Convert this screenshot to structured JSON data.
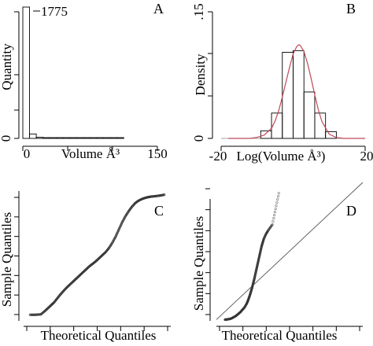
{
  "chart_data": [
    {
      "panel": "A",
      "type": "bar",
      "xlabel": "Volume Å³",
      "ylabel": "Quantity",
      "x_ticks": [
        "0",
        "150"
      ],
      "y_ticks": [
        "0"
      ],
      "annotation": "1775",
      "bins": [
        {
          "x0": 0,
          "x1": 7.5,
          "value": 1775
        },
        {
          "x0": 7.5,
          "x1": 15,
          "value": 60
        },
        {
          "x0": 15,
          "x1": 22.5,
          "value": 15
        },
        {
          "x0": 22.5,
          "x1": 30,
          "value": 8
        },
        {
          "x0": 30,
          "x1": 37.5,
          "value": 6
        },
        {
          "x0": 37.5,
          "x1": 45,
          "value": 5
        },
        {
          "x0": 45,
          "x1": 52.5,
          "value": 4
        },
        {
          "x0": 52.5,
          "x1": 60,
          "value": 3
        },
        {
          "x0": 60,
          "x1": 67.5,
          "value": 3
        },
        {
          "x0": 67.5,
          "x1": 75,
          "value": 2
        },
        {
          "x0": 75,
          "x1": 82.5,
          "value": 2
        },
        {
          "x0": 82.5,
          "x1": 90,
          "value": 1
        },
        {
          "x0": 90,
          "x1": 97.5,
          "value": 1
        },
        {
          "x0": 97.5,
          "x1": 105,
          "value": 1
        },
        {
          "x0": 105,
          "x1": 112.5,
          "value": 1
        }
      ],
      "xlim": [
        0,
        150
      ],
      "ylim": [
        0,
        1775
      ]
    },
    {
      "panel": "B",
      "type": "bar",
      "xlabel": "Log(Volume Å³)",
      "ylabel": "Density",
      "x_ticks": [
        "-20",
        "20"
      ],
      "y_ticks": [
        "0",
        ".15"
      ],
      "bins": [
        {
          "x0": -9,
          "x1": -6,
          "value": 0.009
        },
        {
          "x0": -6,
          "x1": -3,
          "value": 0.03
        },
        {
          "x0": -3,
          "x1": 0,
          "value": 0.102
        },
        {
          "x0": 0,
          "x1": 3,
          "value": 0.104
        },
        {
          "x0": 3,
          "x1": 6,
          "value": 0.055
        },
        {
          "x0": 6,
          "x1": 9,
          "value": 0.03
        },
        {
          "x0": 9,
          "x1": 12,
          "value": 0.008
        }
      ],
      "density_curve": {
        "color": "#c0485a",
        "mean": 1.6,
        "sd": 3.6,
        "x": [
          -18,
          -16,
          -14,
          -12,
          -10,
          -8,
          -6,
          -5,
          -4,
          -3,
          -2,
          -1,
          0,
          1,
          1.6,
          2,
          3,
          4,
          5,
          6,
          7,
          8,
          10,
          12,
          14,
          16,
          18,
          20
        ],
        "y": [
          0.0,
          0.0,
          0.0,
          0.0,
          0.0012,
          0.004,
          0.012,
          0.0205,
          0.033,
          0.049,
          0.067,
          0.084,
          0.1,
          0.109,
          0.111,
          0.11,
          0.103,
          0.089,
          0.071,
          0.052,
          0.034,
          0.02,
          0.005,
          0.001,
          0.0,
          0.0,
          0.0,
          0.0
        ]
      },
      "xlim": [
        -20,
        20
      ],
      "ylim": [
        0,
        0.15
      ]
    },
    {
      "panel": "C",
      "type": "scatter",
      "xlabel": "Theoretical Quantiles",
      "ylabel": "Sample Quantiles",
      "description_shape": "normal-qq",
      "xlim": [
        -3.4,
        3.4
      ],
      "ylim": [
        -3.2,
        3.2
      ],
      "x": [
        -3.1,
        -2.85,
        -2.6,
        -2.4,
        -2.25,
        -2.1,
        -2.0,
        -1.85,
        -1.7,
        -1.55,
        -1.4,
        -1.25,
        -1.1,
        -0.95,
        -0.8,
        -0.65,
        -0.5,
        -0.35,
        -0.2,
        -0.05,
        0.1,
        0.25,
        0.4,
        0.55,
        0.7,
        0.85,
        1.0,
        1.15,
        1.3,
        1.45,
        1.6,
        1.75,
        1.9,
        2.05,
        2.2,
        2.35,
        2.5,
        2.7,
        2.9,
        3.1
      ],
      "y": [
        -2.9,
        -2.9,
        -2.88,
        -2.7,
        -2.55,
        -2.4,
        -2.3,
        -2.1,
        -1.9,
        -1.72,
        -1.55,
        -1.4,
        -1.25,
        -1.1,
        -0.95,
        -0.8,
        -0.65,
        -0.5,
        -0.38,
        -0.25,
        -0.1,
        0.05,
        0.2,
        0.4,
        0.65,
        0.95,
        1.3,
        1.65,
        1.95,
        2.2,
        2.42,
        2.6,
        2.72,
        2.8,
        2.86,
        2.9,
        2.93,
        2.95,
        2.98,
        3.02
      ]
    },
    {
      "panel": "D",
      "type": "scatter",
      "xlabel": "Theoretical Quantiles",
      "ylabel": "Sample Quantiles",
      "description_shape": "skewed-qq",
      "xlim": [
        -3.4,
        3.4
      ],
      "ylim": [
        -1.5,
        10
      ],
      "reference_line": {
        "x": [
          -3.4,
          3.4
        ],
        "y": [
          -1.4,
          10.2
        ]
      },
      "x": [
        -3.0,
        -2.9,
        -2.8,
        -2.7,
        -2.6,
        -2.5,
        -2.4,
        -2.3,
        -2.2,
        -2.1,
        -2.0,
        -1.95,
        -1.9,
        -1.85,
        -1.8,
        -1.75,
        -1.7,
        -1.65,
        -1.6,
        -1.55,
        -1.5,
        -1.45,
        -1.4,
        -1.35,
        -1.3,
        -1.25,
        -1.2,
        -1.1,
        -1.0,
        -0.8,
        -0.5
      ],
      "y": [
        -1.4,
        -1.38,
        -1.35,
        -1.3,
        -1.2,
        -1.1,
        -0.95,
        -0.8,
        -0.6,
        -0.4,
        -0.1,
        0.1,
        0.35,
        0.6,
        0.9,
        1.2,
        1.55,
        1.9,
        2.3,
        2.7,
        3.1,
        3.5,
        3.9,
        4.3,
        4.7,
        5.0,
        5.3,
        5.7,
        6.0,
        6.5,
        9.1
      ]
    }
  ]
}
